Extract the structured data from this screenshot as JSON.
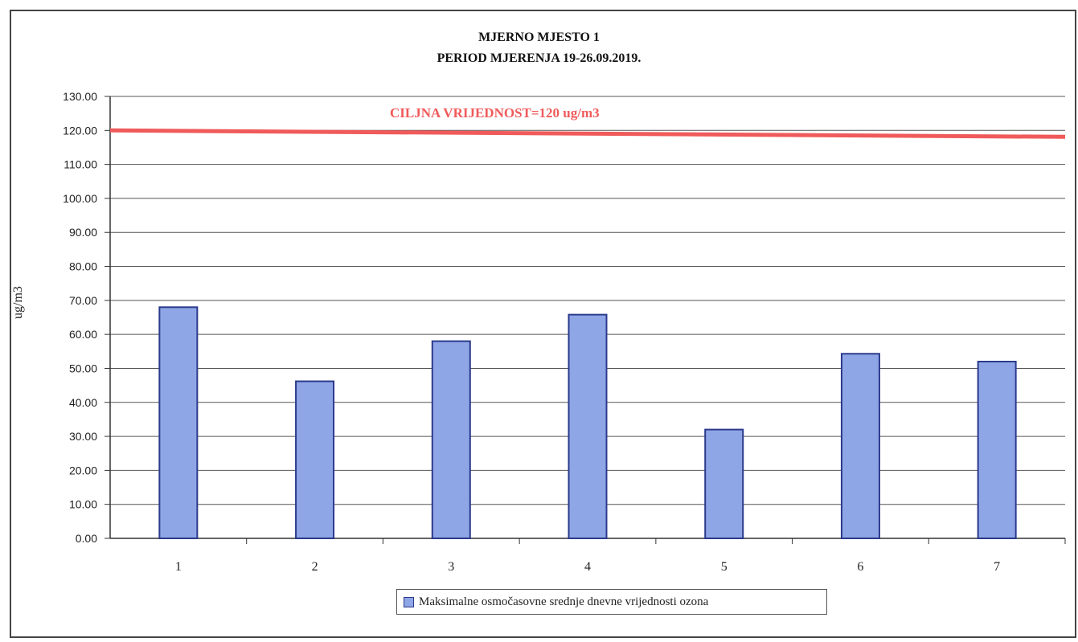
{
  "chart_data": {
    "type": "bar",
    "title": "MJERNO MJESTO 1",
    "subtitle": "PERIOD MJERENJA 19-26.09.2019.",
    "ylabel": "ug/m3",
    "xlabel": "",
    "categories": [
      "1",
      "2",
      "3",
      "4",
      "5",
      "6",
      "7"
    ],
    "series": [
      {
        "name": "Maksimalne osmočasovne srednje dnevne vrijednosti ozona",
        "values": [
          68.0,
          46.2,
          58.0,
          65.8,
          32.0,
          54.3,
          52.0
        ],
        "color": "#8fa6e6"
      }
    ],
    "ylim": [
      0,
      130
    ],
    "yticks": [
      "0.00",
      "10.00",
      "20.00",
      "30.00",
      "40.00",
      "50.00",
      "60.00",
      "70.00",
      "80.00",
      "90.00",
      "100.00",
      "110.00",
      "120.00",
      "130.00"
    ],
    "grid": true,
    "legend": "bottom",
    "target_line": {
      "value": 120,
      "label": "CILJNA VRIJEDNOST=120 ug/m3",
      "color": "#f05a5a"
    }
  }
}
